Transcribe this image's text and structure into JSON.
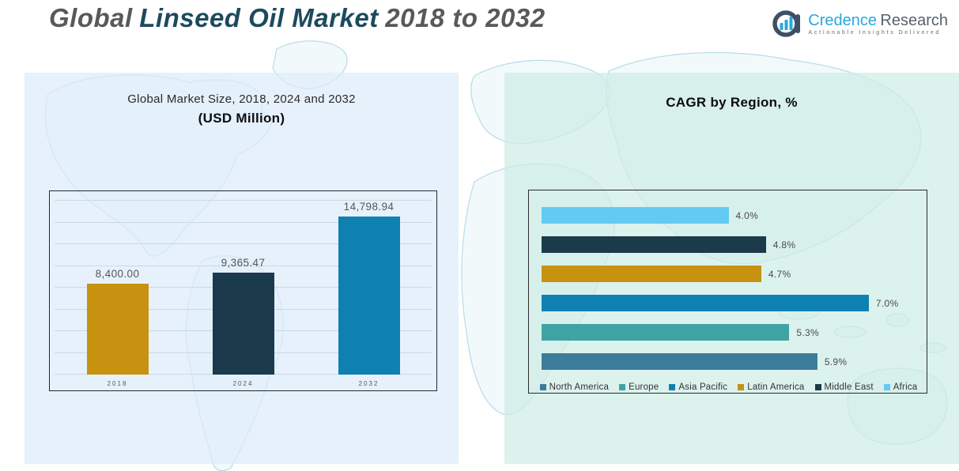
{
  "header": {
    "title_part1": "Global",
    "title_part2": "Linseed Oil Market",
    "title_part3": "2018 to 2032",
    "logo": {
      "brand_primary": "Credence",
      "brand_secondary": "Research",
      "tagline": "Actionable Insights Delivered",
      "brand_primary_color": "#29a8dc",
      "brand_secondary_color": "#55636f"
    }
  },
  "chart_data": [
    {
      "type": "bar",
      "title": "Global Market Size, 2018, 2024 and 2032",
      "subtitle": "(USD Million)",
      "categories": [
        "2018",
        "2024",
        "2032"
      ],
      "values": [
        8400.0,
        9365.47,
        14798.94
      ],
      "value_labels": [
        "8,400.00",
        "9,365.47",
        "14,798.94"
      ],
      "bar_colors": [
        "#c6920f",
        "#1b3a4b",
        "#0e81b2"
      ],
      "xlabel": "",
      "ylabel": "",
      "ylim": [
        0,
        16000
      ],
      "gridlines": 8,
      "grid": true,
      "legend_position": "none"
    },
    {
      "type": "bar-horizontal",
      "title": "CAGR by Region, %",
      "categories": [
        "Africa",
        "Middle East",
        "Latin America",
        "Asia Pacific",
        "Europe",
        "North America"
      ],
      "values": [
        4.0,
        4.8,
        4.7,
        7.0,
        5.3,
        5.9
      ],
      "value_labels": [
        "4.0%",
        "4.8%",
        "4.7%",
        "7.0%",
        "5.3%",
        "5.9%"
      ],
      "bar_colors": [
        "#63cbf1",
        "#1b3a4b",
        "#c6920f",
        "#0e81b2",
        "#3fa3a3",
        "#3c7d9b"
      ],
      "xlim": [
        0,
        8
      ],
      "grid": false,
      "legend_position": "bottom",
      "legend": [
        {
          "label": "North America",
          "color": "#3c7d9b"
        },
        {
          "label": "Europe",
          "color": "#3fa3a3"
        },
        {
          "label": "Asia Pacific",
          "color": "#0e81b2"
        },
        {
          "label": "Latin America",
          "color": "#c6920f"
        },
        {
          "label": "Middle East",
          "color": "#1b3a4b"
        },
        {
          "label": "Africa",
          "color": "#63cbf1"
        }
      ]
    }
  ]
}
